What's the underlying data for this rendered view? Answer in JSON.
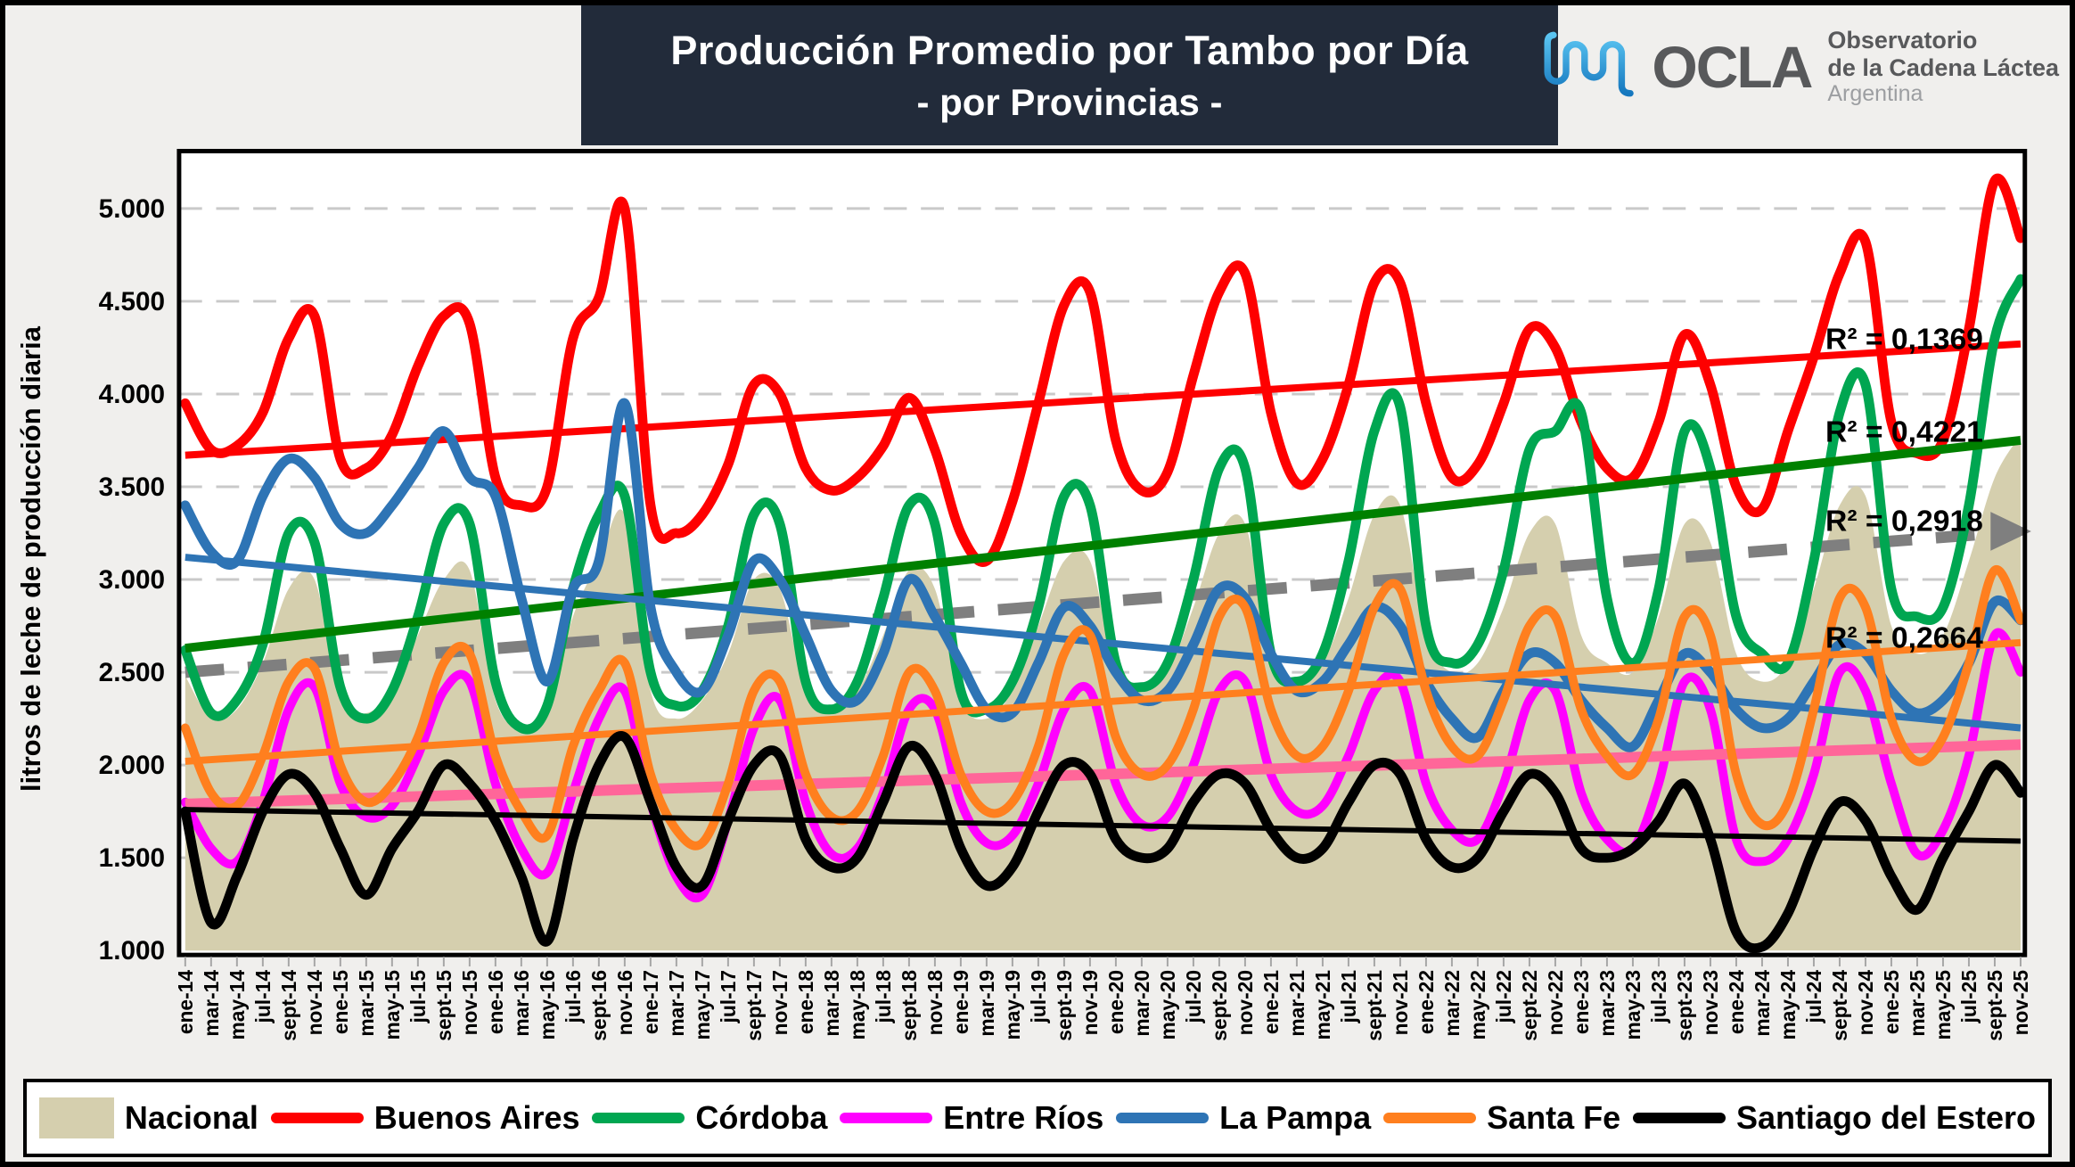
{
  "header": {
    "title_line1": "Producción Promedio por Tambo por Día",
    "title_line2": "- por Provincias -"
  },
  "logo": {
    "acronym": "OCLA",
    "line1": "Observatorio",
    "line2": "de la Cadena Láctea",
    "line3": "Argentina"
  },
  "colors": {
    "title_bar": "#222B3A",
    "background": "#F0EFED",
    "plot_background": "#FFFFFF",
    "gridline": "#C9C9C9",
    "frame": "#000000"
  },
  "chart_data": {
    "type": "line",
    "title": "Producción Promedio por Tambo por Día - por Provincias -",
    "y_axis_title": "litros de leche de producción diaria",
    "x_axis_title": "",
    "ylim": [
      1000,
      5300
    ],
    "y_tick_labels": [
      "1.000",
      "1.500",
      "2.000",
      "2.500",
      "3.000",
      "3.500",
      "4.000",
      "4.500",
      "5.000"
    ],
    "grid": "horizontal-dashed",
    "legend_position": "bottom",
    "x_tick_rotation": -90,
    "categories": [
      "ene-14",
      "mar-14",
      "may-14",
      "jul-14",
      "sept-14",
      "nov-14",
      "ene-15",
      "mar-15",
      "may-15",
      "jul-15",
      "sept-15",
      "nov-15",
      "ene-16",
      "mar-16",
      "may-16",
      "jul-16",
      "sept-16",
      "nov-16",
      "ene-17",
      "mar-17",
      "may-17",
      "jul-17",
      "sept-17",
      "nov-17",
      "ene-18",
      "mar-18",
      "may-18",
      "jul-18",
      "sept-18",
      "nov-18",
      "ene-19",
      "mar-19",
      "may-19",
      "jul-19",
      "sept-19",
      "nov-19",
      "ene-20",
      "mar-20",
      "may-20",
      "jul-20",
      "sept-20",
      "nov-20",
      "ene-21",
      "mar-21",
      "may-21",
      "jul-21",
      "sept-21",
      "nov-21",
      "ene-22",
      "mar-22",
      "may-22",
      "jul-22",
      "sept-22",
      "nov-22",
      "ene-23",
      "mar-23",
      "may-23",
      "jul-23",
      "sept-23",
      "nov-23",
      "ene-24",
      "mar-24",
      "may-24",
      "jul-24",
      "sept-24",
      "nov-24",
      "ene-25",
      "mar-25",
      "may-25",
      "jul-25",
      "sept-25",
      "nov-25"
    ],
    "series": [
      {
        "name": "Nacional",
        "type": "area",
        "color": "#D5CFAE",
        "width": 0,
        "values": [
          2480,
          2250,
          2300,
          2550,
          2950,
          3000,
          2350,
          2280,
          2400,
          2700,
          3000,
          3050,
          2350,
          2200,
          2300,
          2800,
          3100,
          3350,
          2400,
          2250,
          2350,
          2600,
          3000,
          2950,
          2400,
          2300,
          2400,
          2700,
          3050,
          2950,
          2350,
          2250,
          2400,
          2750,
          3100,
          3100,
          2500,
          2400,
          2500,
          2850,
          3250,
          3300,
          2600,
          2450,
          2550,
          2900,
          3350,
          3400,
          2700,
          2500,
          2550,
          2850,
          3250,
          3300,
          2700,
          2550,
          2500,
          2800,
          3300,
          3200,
          2600,
          2450,
          2550,
          2950,
          3400,
          3450,
          2750,
          2600,
          2700,
          3100,
          3550,
          3780
        ]
      },
      {
        "name": "Buenos Aires",
        "type": "line",
        "color": "#FE0000",
        "width": 11,
        "values": [
          3950,
          3700,
          3720,
          3900,
          4300,
          4420,
          3650,
          3600,
          3780,
          4150,
          4420,
          4380,
          3550,
          3400,
          3500,
          4300,
          4520,
          5000,
          3400,
          3250,
          3350,
          3620,
          4050,
          4000,
          3600,
          3480,
          3550,
          3720,
          3980,
          3700,
          3250,
          3100,
          3420,
          3950,
          4480,
          4550,
          3750,
          3480,
          3580,
          4100,
          4550,
          4650,
          3900,
          3520,
          3650,
          4050,
          4600,
          4600,
          3950,
          3550,
          3620,
          3950,
          4350,
          4250,
          3850,
          3600,
          3550,
          3850,
          4320,
          4050,
          3500,
          3380,
          3800,
          4200,
          4650,
          4820,
          3850,
          3680,
          3750,
          4350,
          5150,
          4840
        ]
      },
      {
        "name": "Córdoba",
        "type": "line",
        "color": "#00A651",
        "width": 11,
        "values": [
          2620,
          2280,
          2350,
          2650,
          3250,
          3200,
          2420,
          2250,
          2400,
          2800,
          3300,
          3300,
          2450,
          2200,
          2320,
          2950,
          3350,
          3450,
          2500,
          2320,
          2400,
          2750,
          3350,
          3300,
          2450,
          2300,
          2450,
          2900,
          3400,
          3300,
          2400,
          2300,
          2450,
          2850,
          3450,
          3400,
          2550,
          2420,
          2550,
          3000,
          3600,
          3600,
          2600,
          2450,
          2600,
          3100,
          3800,
          3930,
          2750,
          2550,
          2650,
          3050,
          3700,
          3800,
          3900,
          2900,
          2550,
          2950,
          3800,
          3600,
          2800,
          2600,
          2550,
          3100,
          3900,
          4050,
          2950,
          2800,
          2850,
          3400,
          4300,
          4620
        ]
      },
      {
        "name": "Entre Ríos",
        "type": "line",
        "color": "#FF00FF",
        "width": 10,
        "values": [
          1800,
          1550,
          1480,
          1800,
          2300,
          2420,
          1900,
          1720,
          1780,
          2050,
          2400,
          2450,
          1900,
          1550,
          1420,
          1850,
          2250,
          2400,
          1800,
          1400,
          1300,
          1700,
          2200,
          2350,
          1800,
          1520,
          1550,
          1850,
          2300,
          2300,
          1800,
          1580,
          1620,
          1900,
          2300,
          2400,
          1900,
          1680,
          1720,
          2000,
          2400,
          2450,
          1950,
          1750,
          1780,
          2050,
          2400,
          2450,
          1900,
          1650,
          1600,
          1900,
          2350,
          2400,
          1850,
          1600,
          1550,
          1900,
          2450,
          2300,
          1600,
          1480,
          1600,
          1950,
          2500,
          2400,
          1900,
          1520,
          1650,
          2050,
          2700,
          2500
        ]
      },
      {
        "name": "La Pampa",
        "type": "line",
        "color": "#2E74B5",
        "width": 11,
        "values": [
          3400,
          3150,
          3100,
          3450,
          3650,
          3550,
          3300,
          3250,
          3400,
          3600,
          3800,
          3550,
          3450,
          2900,
          2450,
          2950,
          3100,
          3950,
          2850,
          2500,
          2400,
          2700,
          3100,
          3000,
          2700,
          2400,
          2350,
          2600,
          3000,
          2800,
          2550,
          2300,
          2280,
          2550,
          2850,
          2750,
          2500,
          2350,
          2400,
          2650,
          2950,
          2900,
          2600,
          2400,
          2450,
          2650,
          2850,
          2750,
          2450,
          2250,
          2150,
          2400,
          2600,
          2550,
          2350,
          2200,
          2100,
          2350,
          2600,
          2500,
          2300,
          2200,
          2250,
          2450,
          2650,
          2600,
          2400,
          2280,
          2350,
          2550,
          2880,
          2780
        ]
      },
      {
        "name": "Santa Fe",
        "type": "line",
        "color": "#FF7F1E",
        "width": 10,
        "values": [
          2200,
          1850,
          1780,
          2050,
          2450,
          2520,
          2000,
          1800,
          1900,
          2150,
          2550,
          2600,
          2050,
          1750,
          1620,
          2100,
          2400,
          2550,
          1950,
          1650,
          1580,
          1900,
          2400,
          2450,
          1950,
          1720,
          1750,
          2050,
          2500,
          2400,
          1950,
          1750,
          1800,
          2100,
          2600,
          2700,
          2150,
          1950,
          2000,
          2300,
          2800,
          2850,
          2300,
          2050,
          2100,
          2400,
          2850,
          2950,
          2400,
          2100,
          2050,
          2350,
          2750,
          2800,
          2300,
          2050,
          1950,
          2250,
          2800,
          2700,
          1950,
          1680,
          1800,
          2300,
          2900,
          2850,
          2250,
          2020,
          2150,
          2550,
          3050,
          2780
        ]
      },
      {
        "name": "Santiago del Estero",
        "type": "line",
        "color": "#000000",
        "width": 11,
        "values": [
          1750,
          1150,
          1400,
          1750,
          1950,
          1850,
          1550,
          1300,
          1550,
          1750,
          2000,
          1900,
          1700,
          1400,
          1050,
          1600,
          2000,
          2150,
          1800,
          1450,
          1350,
          1700,
          2000,
          2050,
          1600,
          1450,
          1500,
          1800,
          2100,
          1950,
          1550,
          1350,
          1450,
          1750,
          2000,
          1950,
          1600,
          1500,
          1550,
          1800,
          1950,
          1900,
          1650,
          1500,
          1550,
          1800,
          2000,
          1950,
          1600,
          1450,
          1500,
          1750,
          1950,
          1850,
          1550,
          1500,
          1550,
          1700,
          1900,
          1600,
          1100,
          1020,
          1200,
          1550,
          1800,
          1700,
          1400,
          1220,
          1500,
          1750,
          2000,
          1850
        ]
      }
    ],
    "trendlines": [
      {
        "series": "Nacional",
        "color": "#7F7F7F",
        "start": 2500,
        "end": 3260,
        "width": 13,
        "dashed": true,
        "arrow": true,
        "r2_label": "R² = 0,2918",
        "r2_pos": {
          "x_index": 66.5,
          "value": 3320
        }
      },
      {
        "series": "Buenos Aires",
        "color": "#FE0000",
        "start": 3670,
        "end": 4270,
        "width": 8,
        "r2_label": "R² = 0,1369",
        "r2_pos": {
          "x_index": 66.5,
          "value": 4300
        }
      },
      {
        "series": "Córdoba",
        "color": "#008000",
        "start": 2630,
        "end": 3750,
        "width": 10,
        "r2_label": "R² = 0,4221",
        "r2_pos": {
          "x_index": 66.5,
          "value": 3800
        }
      },
      {
        "series": "Entre Ríos",
        "color": "#FF6699",
        "start": 1790,
        "end": 2110,
        "width": 12
      },
      {
        "series": "La Pampa",
        "color": "#2E74B5",
        "start": 3120,
        "end": 2200,
        "width": 8
      },
      {
        "series": "Santa Fe",
        "color": "#FF7F1E",
        "start": 2020,
        "end": 2660,
        "width": 8,
        "r2_label": "R² = 0,2664",
        "r2_pos": {
          "x_index": 66.5,
          "value": 2690
        }
      },
      {
        "series": "Santiago del Estero",
        "color": "#000000",
        "start": 1760,
        "end": 1590,
        "width": 6
      }
    ]
  }
}
